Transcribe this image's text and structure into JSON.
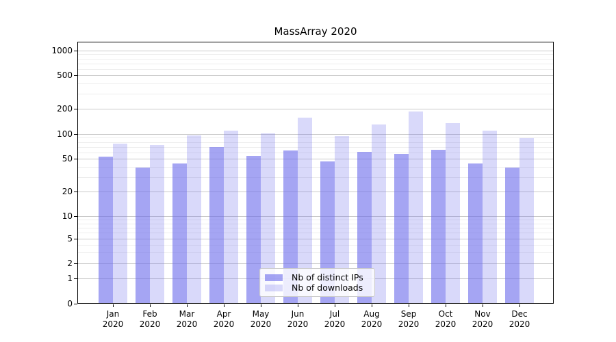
{
  "title": "MassArray 2020",
  "chart_data": {
    "type": "bar",
    "title": "MassArray 2020",
    "categories": [
      "Jan",
      "Feb",
      "Mar",
      "Apr",
      "May",
      "Jun",
      "Jul",
      "Aug",
      "Sep",
      "Oct",
      "Nov",
      "Dec"
    ],
    "category_year": "2020",
    "series": [
      {
        "name": "Nb of distinct IPs",
        "color": "rgba(110,110,235,0.62)",
        "values": [
          53,
          39,
          44,
          69,
          54,
          63,
          46,
          61,
          57,
          64,
          44,
          39
        ]
      },
      {
        "name": "Nb of downloads",
        "color": "rgba(110,110,235,0.26)",
        "values": [
          76,
          73,
          96,
          110,
          101,
          157,
          94,
          129,
          184,
          135,
          109,
          89
        ]
      }
    ],
    "yscale": "symlog",
    "ylim": [
      0,
      1250
    ],
    "y_ticks": [
      0,
      1,
      2,
      5,
      10,
      20,
      50,
      100,
      200,
      500,
      1000
    ],
    "y_minor_ticks": [
      3,
      4,
      6,
      7,
      8,
      9,
      30,
      40,
      60,
      70,
      80,
      90,
      300,
      400,
      600,
      700,
      800,
      900
    ],
    "grid": true,
    "legend_position": "lower center",
    "style": {
      "bar_base_color": "#6e6eeb",
      "major_grid_color": "#c9c9c9",
      "minor_grid_color": "#ededed",
      "axis_color": "#000000",
      "background": "#ffffff"
    }
  }
}
